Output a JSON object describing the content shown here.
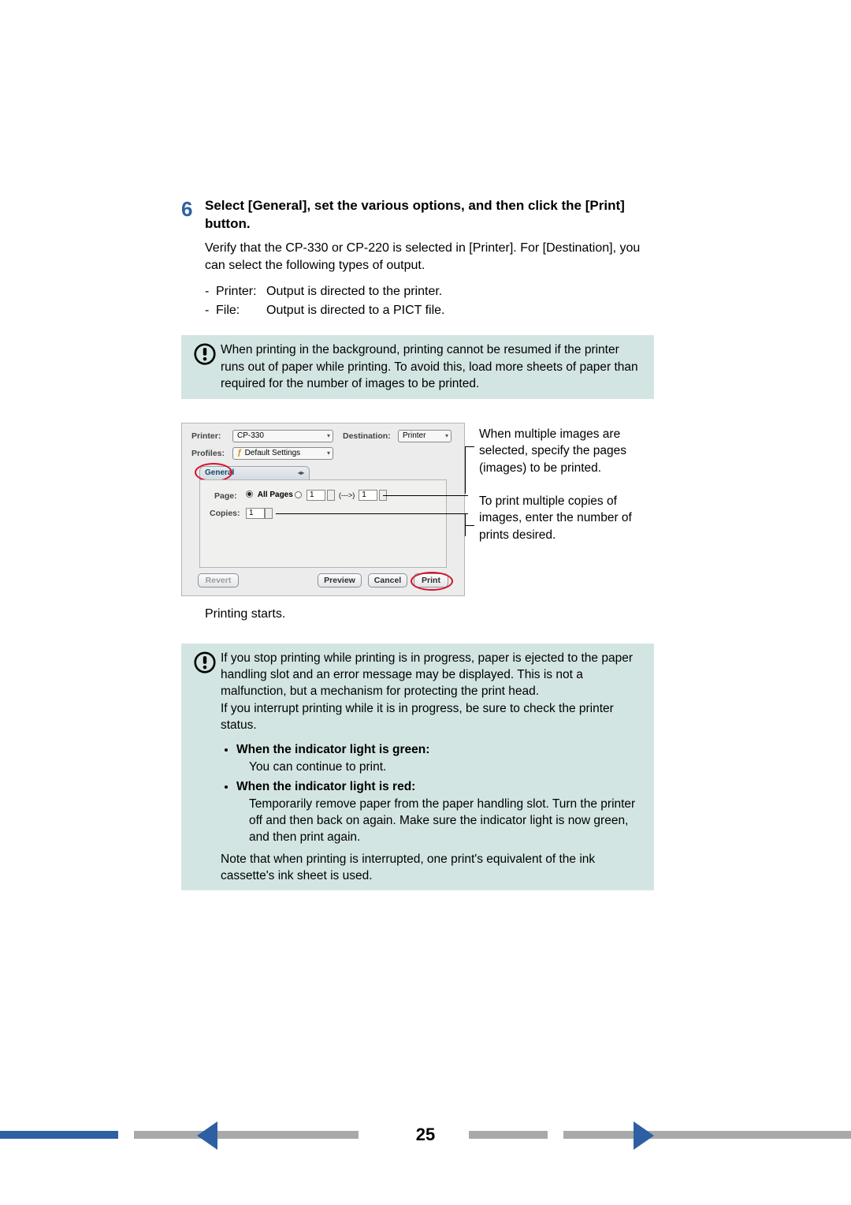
{
  "step": {
    "number": "6",
    "title": "Select [General], set the various options, and then click the [Print] button.",
    "verify": "Verify that the CP-330 or CP-220 is selected in [Printer]. For [Destination], you can select the following types of output.",
    "outputs": [
      {
        "dash": "-",
        "label": "Printer:",
        "desc": "Output is directed to the printer."
      },
      {
        "dash": "-",
        "label": "File:",
        "desc": "Output is directed to a PICT file."
      }
    ]
  },
  "warn1": "When printing in the background, printing cannot be resumed if the printer runs out of paper while printing. To avoid this, load more sheets of paper than required for the number of images to be printed.",
  "dialog": {
    "printer_label": "Printer:",
    "printer_value": "CP-330",
    "destination_label": "Destination:",
    "destination_value": "Printer",
    "profiles_label": "Profiles:",
    "profiles_value": "Default Settings",
    "profiles_flag": "ƒ",
    "tab": "General",
    "page_label": "Page:",
    "allpages": "All Pages",
    "page_from": "1",
    "page_arrow": "(--->)",
    "page_to": "1",
    "copies_label": "Copies:",
    "copies_value": "1",
    "btn_revert": "Revert",
    "btn_preview": "Preview",
    "btn_cancel": "Cancel",
    "btn_print": "Print"
  },
  "side": {
    "note1": "When multiple images are selected, specify the pages (images) to be printed.",
    "note2": "To print multiple copies of images, enter the number of prints desired."
  },
  "printing_starts": "Printing starts.",
  "warn2": {
    "p1": "If you stop printing while printing is in progress, paper is ejected to the paper handling slot and an error message may be displayed. This is not a malfunction, but a mechanism for protecting the print head.",
    "p2": "If you interrupt printing while it is in progress, be sure to check the printer status.",
    "li1_title": "When the indicator light is green:",
    "li1_body": "You can continue to print.",
    "li2_title": "When the indicator light is red:",
    "li2_body": "Temporarily remove paper from the paper handling slot. Turn the printer off and then back on again. Make sure the indicator light is now green, and then print again.",
    "p3": "Note that when printing is interrupted, one print's equivalent of the ink cassette's ink sheet is used."
  },
  "footer": {
    "pagenum": "25",
    "stripe_colors": [
      "#2e5fa3",
      "#ffffff",
      "#a7a9ab",
      "#ffffff",
      "#a7a9ab",
      "#ffffff",
      "#a7a9ab"
    ],
    "stripe_widths": [
      150,
      20,
      285,
      140,
      100,
      20,
      365
    ]
  },
  "colors": {
    "accent": "#2e5fa3",
    "callout_bg": "#d3e5e2",
    "red": "#d7112a"
  }
}
